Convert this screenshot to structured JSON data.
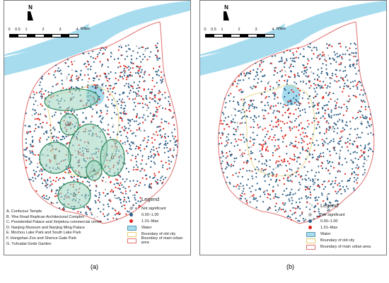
{
  "panels": [
    {
      "id": "a",
      "north_label": "N",
      "scale_ticks": [
        "0",
        "0.5",
        "1",
        "2",
        "3",
        "4"
      ],
      "scale_unit": "Miles",
      "legend": {
        "title": "Legend",
        "items": [
          {
            "label": "Not significant",
            "color": "#b4b4b4",
            "kind": "dot"
          },
          {
            "label": "0.00–1.00",
            "color": "#2e5f86",
            "kind": "dot"
          },
          {
            "label": "1.01–Max",
            "color": "#e2231a",
            "kind": "dot"
          },
          {
            "label": "Water",
            "color": "#a7dcef",
            "kind": "box"
          },
          {
            "label": "Boundary of old city",
            "color": "#e3cf6d",
            "kind": "outline"
          },
          {
            "label": "Boundary of main urban area",
            "color": "#e07070",
            "kind": "outline"
          }
        ]
      },
      "places": [
        "A. Confucius Temple",
        "B. Yihe Road Replican Architectural Complex",
        "C. Presidential Palace and  Xinjiekou commercial centre",
        "D. Nanjing Museum and Nanjing Ming Palace",
        "E. Mochou Lake Park and South Lake Park",
        "F. Hongshan Zoo and Shence Gate Park",
        "G. Yuhuatai Gede Garden"
      ],
      "zone_labels": [
        "F",
        "B",
        "C",
        "E",
        "A",
        "D",
        "G"
      ],
      "caption": "(a)"
    },
    {
      "id": "b",
      "north_label": "N",
      "scale_ticks": [
        "0",
        "0.5",
        "1",
        "2",
        "3",
        "4"
      ],
      "scale_unit": "Miles",
      "legend": {
        "title": "Legend",
        "items": [
          {
            "label": "Not significant",
            "color": "#b4b4b4",
            "kind": "dot"
          },
          {
            "label": "0.00–1.00",
            "color": "#2e5f86",
            "kind": "dot"
          },
          {
            "label": "1.01–Max",
            "color": "#e2231a",
            "kind": "dot"
          },
          {
            "label": "Water",
            "color": "#a7dcef",
            "kind": "box"
          },
          {
            "label": "Boundary of old city",
            "color": "#e3cf6d",
            "kind": "outline"
          },
          {
            "label": "Boundary of main urban area",
            "color": "#e07070",
            "kind": "outline"
          }
        ]
      },
      "caption": "(b)"
    }
  ],
  "colors": {
    "river": "#a7dcef",
    "land": "#ffffff",
    "zone_fill": "#9fd3bf",
    "zone_stroke": "#2e8a5e"
  }
}
